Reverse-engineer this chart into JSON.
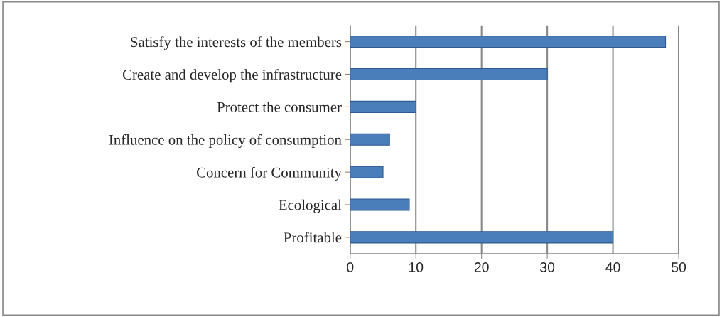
{
  "chart_data": {
    "type": "bar",
    "orientation": "horizontal",
    "categories": [
      "Satisfy the interests of the members",
      "Create and develop the infrastructure",
      "Protect the consumer",
      "Influence on the policy of consumption",
      "Concern for Community",
      "Ecological",
      "Profitable"
    ],
    "values": [
      48,
      30,
      10,
      6,
      5,
      9,
      40
    ],
    "color": "#4a7ebb",
    "xlim": [
      0,
      50
    ],
    "xticks": [
      0,
      10,
      20,
      30,
      40,
      50
    ],
    "grid": "x",
    "legend": false
  }
}
